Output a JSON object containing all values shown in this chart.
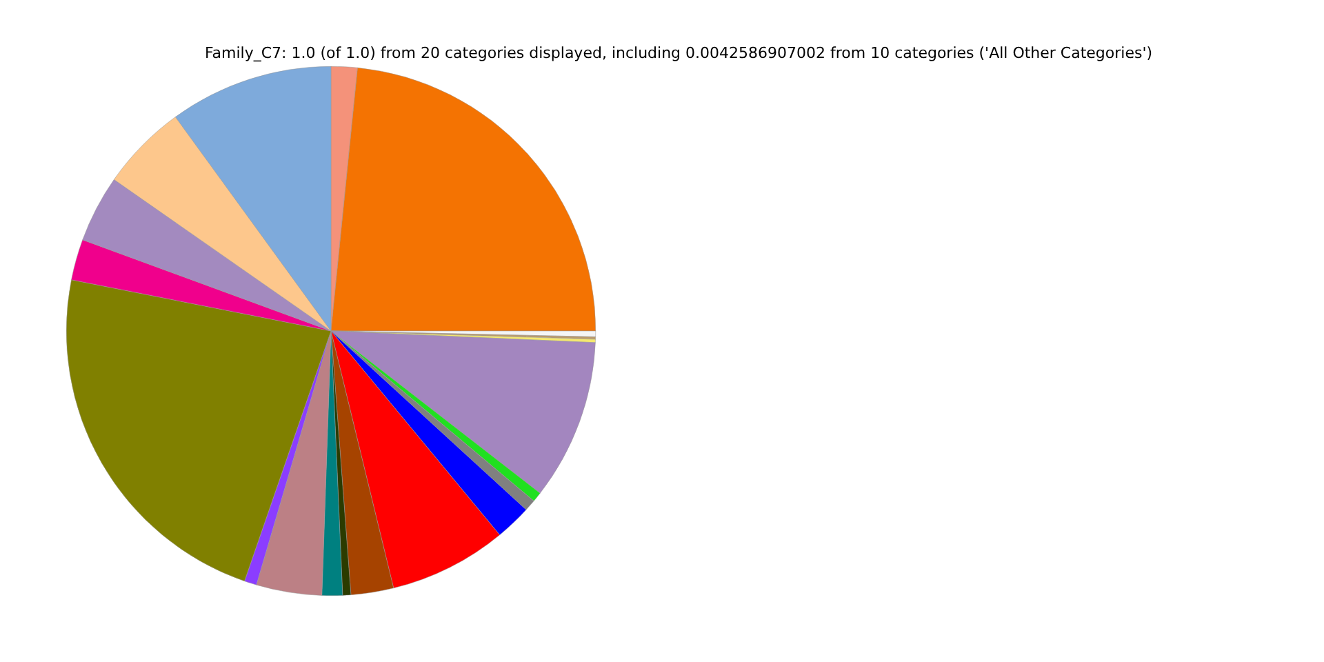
{
  "chart_data": {
    "type": "pie",
    "title": "Family_C7: 1.0 (of 1.0) from 20 categories displayed, including 0.0042586907002 from 10 categories ('All Other Categories')",
    "categories": [
      null,
      null,
      null,
      null,
      null,
      null,
      null,
      null,
      null,
      null,
      null,
      null,
      null,
      null,
      null,
      null,
      null,
      null,
      null,
      null
    ],
    "values": [
      1.6,
      23.4,
      0.35,
      0.15,
      0.2,
      9.8,
      0.6,
      0.7,
      2.2,
      7.2,
      2.6,
      0.5,
      1.25,
      4.0,
      0.75,
      22.8,
      2.5,
      4.1,
      5.3,
      10.0
    ],
    "colors": [
      "#f4927a",
      "#f47302",
      "#f5f5f5",
      "#bc9a6a",
      "#f5e870",
      "#a386bf",
      "#20e020",
      "#808080",
      "#0000ff",
      "#ff0000",
      "#a64300",
      "#2b3b00",
      "#008080",
      "#bc8085",
      "#8b3dff",
      "#808000",
      "#f0008c",
      "#a38abf",
      "#fdc78c",
      "#7eaadb"
    ],
    "legend": false
  }
}
